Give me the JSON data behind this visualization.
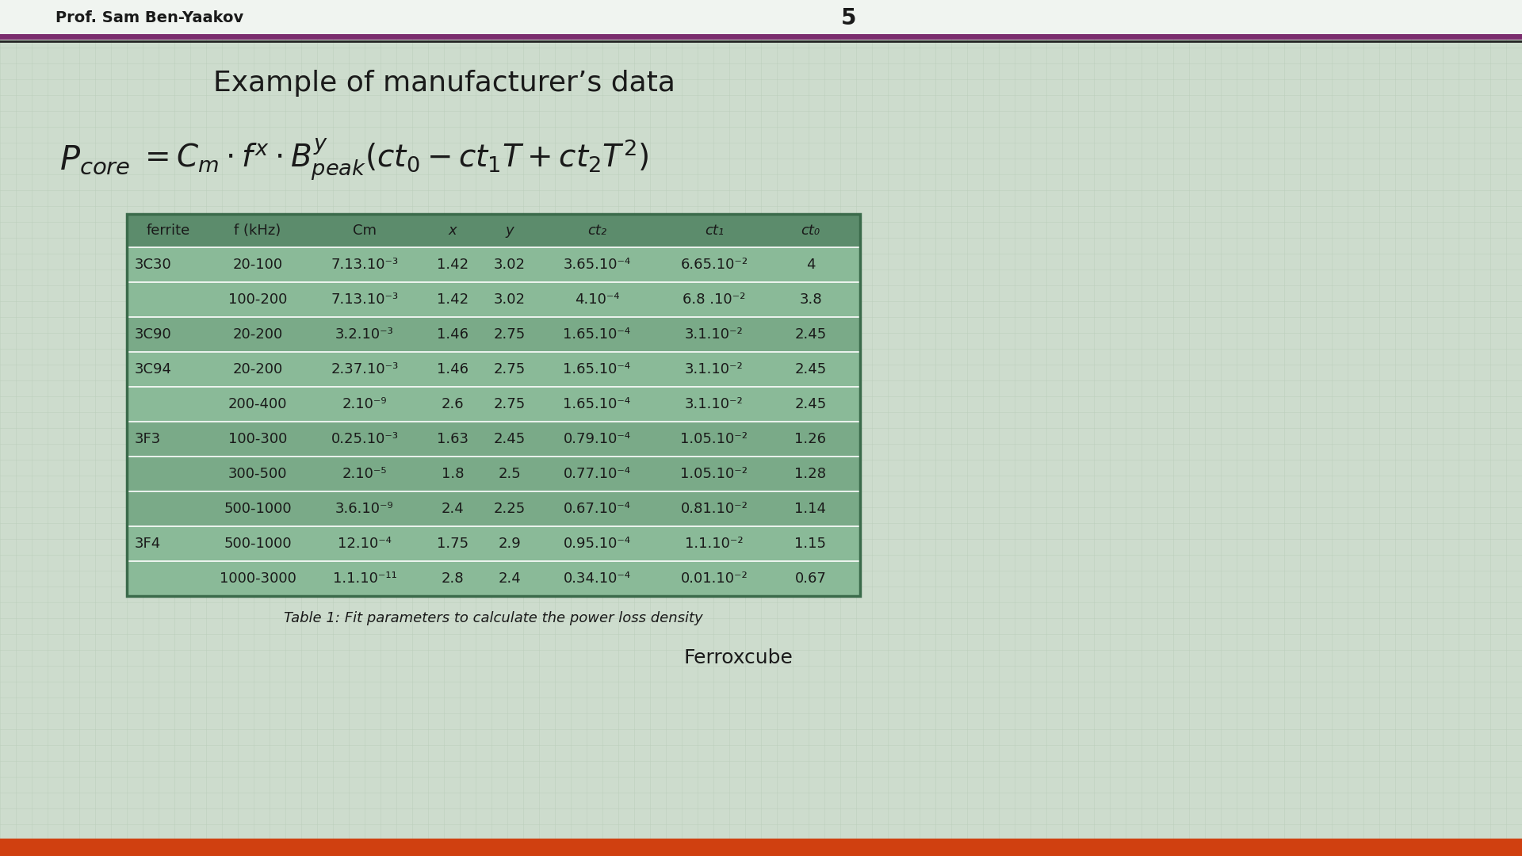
{
  "title": "Example of manufacturer’s data",
  "header": [
    "ferrite",
    "f (kHz)",
    "Cm",
    "x",
    "y",
    "ct₂",
    "ct₁",
    "ct₀"
  ],
  "rows": [
    [
      "3C30",
      "20-100",
      "7.13.10⁻³",
      "1.42",
      "3.02",
      "3.65.10⁻⁴",
      "6.65.10⁻²",
      "4"
    ],
    [
      "",
      "100-200",
      "7.13.10⁻³",
      "1.42",
      "3.02",
      "4.10⁻⁴",
      "6.8 .10⁻²",
      "3.8"
    ],
    [
      "3C90",
      "20-200",
      "3.2.10⁻³",
      "1.46",
      "2.75",
      "1.65.10⁻⁴",
      "3.1.10⁻²",
      "2.45"
    ],
    [
      "3C94",
      "20-200",
      "2.37.10⁻³",
      "1.46",
      "2.75",
      "1.65.10⁻⁴",
      "3.1.10⁻²",
      "2.45"
    ],
    [
      "",
      "200-400",
      "2.10⁻⁹",
      "2.6",
      "2.75",
      "1.65.10⁻⁴",
      "3.1.10⁻²",
      "2.45"
    ],
    [
      "3F3",
      "100-300",
      "0.25.10⁻³",
      "1.63",
      "2.45",
      "0.79.10⁻⁴",
      "1.05.10⁻²",
      "1.26"
    ],
    [
      "",
      "300-500",
      "2.10⁻⁵",
      "1.8",
      "2.5",
      "0.77.10⁻⁴",
      "1.05.10⁻²",
      "1.28"
    ],
    [
      "",
      "500-1000",
      "3.6.10⁻⁹",
      "2.4",
      "2.25",
      "0.67.10⁻⁴",
      "0.81.10⁻²",
      "1.14"
    ],
    [
      "3F4",
      "500-1000",
      "12.10⁻⁴",
      "1.75",
      "2.9",
      "0.95.10⁻⁴",
      "1.1.10⁻²",
      "1.15"
    ],
    [
      "",
      "1000-3000",
      "1.1.10⁻¹¹",
      "2.8",
      "2.4",
      "0.34.10⁻⁴",
      "0.01.10⁻²",
      "0.67"
    ]
  ],
  "table_caption": "Table 1: Fit parameters to calculate the power loss density",
  "header_top": "Prof. Sam Ben-Yaakov",
  "page_num": "5",
  "source": "Ferroxcube",
  "page_bg": "#cddccd",
  "grid_color": "#b8ccb8",
  "header_bar_purple": "#7b2d6e",
  "header_bar_dark": "#222222",
  "header_row_color": "#5c8c6c",
  "row_colors": [
    "#7aaa88",
    "#8aba98"
  ],
  "border_color": "#2a5a3a",
  "divider_color": "#ffffff",
  "text_color": "#1a1a1a",
  "caption_color": "#1a1a1a",
  "orange_bar": "#d04010",
  "title_fontsize": 26,
  "header_fontsize": 13,
  "cell_fontsize": 13,
  "caption_fontsize": 13
}
